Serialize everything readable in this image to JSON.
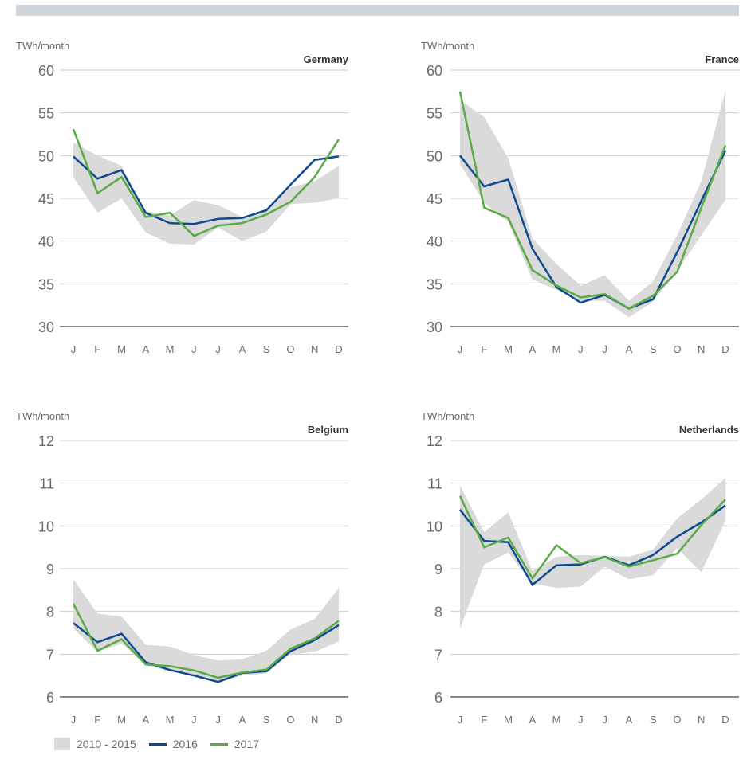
{
  "colors": {
    "top_bar": "#cfd6db",
    "band": "#dadada",
    "line_2016": "#0d4a8f",
    "line_2017": "#5aaa46",
    "axis": "#8a8a8a",
    "grid": "#cccccc",
    "text": "#6b6b6b",
    "title": "#333333"
  },
  "legend": {
    "band_label": "2010 - 2015",
    "series_2016_label": "2016",
    "series_2017_label": "2017"
  },
  "chart_data": [
    {
      "type": "line",
      "title": "Germany",
      "ylabel": "TWh/month",
      "categories": [
        "J",
        "F",
        "M",
        "A",
        "M",
        "J",
        "J",
        "A",
        "S",
        "O",
        "N",
        "D"
      ],
      "ylim": [
        30,
        60
      ],
      "yticks": [
        30,
        35,
        40,
        45,
        50,
        55,
        60
      ],
      "grid": true,
      "band": {
        "name": "2010 - 2015",
        "upper": [
          51.5,
          50.0,
          48.8,
          43.5,
          43.0,
          44.8,
          44.2,
          42.8,
          43.8,
          46.3,
          47.0,
          48.8
        ],
        "lower": [
          47.5,
          43.3,
          45.0,
          41.0,
          39.7,
          39.6,
          41.6,
          40.0,
          41.1,
          44.3,
          44.5,
          45.0
        ]
      },
      "series": [
        {
          "name": "2016",
          "values": [
            49.9,
            47.3,
            48.3,
            43.3,
            42.1,
            42.0,
            42.6,
            42.7,
            43.6,
            46.6,
            49.5,
            49.9
          ]
        },
        {
          "name": "2017",
          "values": [
            53.1,
            45.6,
            47.5,
            42.8,
            43.3,
            40.6,
            41.8,
            42.1,
            43.1,
            44.6,
            47.5,
            51.9
          ]
        }
      ]
    },
    {
      "type": "line",
      "title": "France",
      "ylabel": "TWh/month",
      "categories": [
        "J",
        "F",
        "M",
        "A",
        "M",
        "J",
        "J",
        "A",
        "S",
        "O",
        "N",
        "D"
      ],
      "ylim": [
        30,
        60
      ],
      "yticks": [
        30,
        35,
        40,
        45,
        50,
        55,
        60
      ],
      "grid": true,
      "band": {
        "name": "2010 - 2015",
        "upper": [
          56.5,
          54.5,
          49.7,
          40.3,
          37.3,
          34.8,
          36.0,
          33.0,
          35.3,
          40.7,
          47.0,
          57.6
        ],
        "lower": [
          49.0,
          44.5,
          42.2,
          35.5,
          34.3,
          33.0,
          33.0,
          31.1,
          32.9,
          36.5,
          40.7,
          44.8
        ]
      },
      "series": [
        {
          "name": "2016",
          "values": [
            50.0,
            46.4,
            47.2,
            39.1,
            34.6,
            32.8,
            33.7,
            32.1,
            33.2,
            38.7,
            44.7,
            50.6
          ]
        },
        {
          "name": "2017",
          "values": [
            57.5,
            43.9,
            42.7,
            36.6,
            34.8,
            33.4,
            33.8,
            32.1,
            33.6,
            36.4,
            43.9,
            51.2
          ]
        }
      ]
    },
    {
      "type": "line",
      "title": "Belgium",
      "ylabel": "TWh/month",
      "categories": [
        "J",
        "F",
        "M",
        "A",
        "M",
        "J",
        "J",
        "A",
        "S",
        "O",
        "N",
        "D"
      ],
      "ylim": [
        6,
        12
      ],
      "yticks": [
        6,
        7,
        8,
        9,
        10,
        11,
        12
      ],
      "grid": true,
      "band": {
        "name": "2010 - 2015",
        "upper": [
          8.75,
          7.95,
          7.88,
          7.22,
          7.18,
          6.98,
          6.85,
          6.88,
          7.08,
          7.58,
          7.82,
          8.55
        ],
        "lower": [
          7.6,
          7.05,
          7.25,
          6.75,
          6.6,
          6.5,
          6.35,
          6.5,
          6.55,
          7.0,
          7.05,
          7.3
        ]
      },
      "series": [
        {
          "name": "2016",
          "values": [
            7.73,
            7.28,
            7.48,
            6.81,
            6.63,
            6.5,
            6.35,
            6.56,
            6.6,
            7.07,
            7.33,
            7.68
          ]
        },
        {
          "name": "2017",
          "values": [
            8.18,
            7.08,
            7.35,
            6.76,
            6.72,
            6.62,
            6.45,
            6.57,
            6.64,
            7.13,
            7.37,
            7.78
          ]
        }
      ]
    },
    {
      "type": "line",
      "title": "Netherlands",
      "ylabel": "TWh/month",
      "categories": [
        "J",
        "F",
        "M",
        "A",
        "M",
        "J",
        "J",
        "A",
        "S",
        "O",
        "N",
        "D"
      ],
      "ylim": [
        6,
        12
      ],
      "yticks": [
        6,
        7,
        8,
        9,
        10,
        11,
        12
      ],
      "grid": true,
      "band": {
        "name": "2010 - 2015",
        "upper": [
          10.95,
          9.85,
          10.32,
          8.95,
          9.28,
          9.32,
          9.3,
          9.28,
          9.45,
          10.18,
          10.62,
          11.12
        ],
        "lower": [
          7.6,
          9.1,
          9.38,
          8.65,
          8.55,
          8.58,
          9.05,
          8.75,
          8.85,
          9.48,
          8.92,
          10.12
        ]
      },
      "series": [
        {
          "name": "2016",
          "values": [
            10.38,
            9.65,
            9.62,
            8.62,
            9.08,
            9.1,
            9.28,
            9.08,
            9.32,
            9.75,
            10.08,
            10.48
          ]
        },
        {
          "name": "2017",
          "values": [
            10.7,
            9.5,
            9.73,
            8.77,
            9.55,
            9.13,
            9.27,
            9.05,
            9.2,
            9.35,
            10.02,
            10.62
          ]
        }
      ]
    }
  ]
}
